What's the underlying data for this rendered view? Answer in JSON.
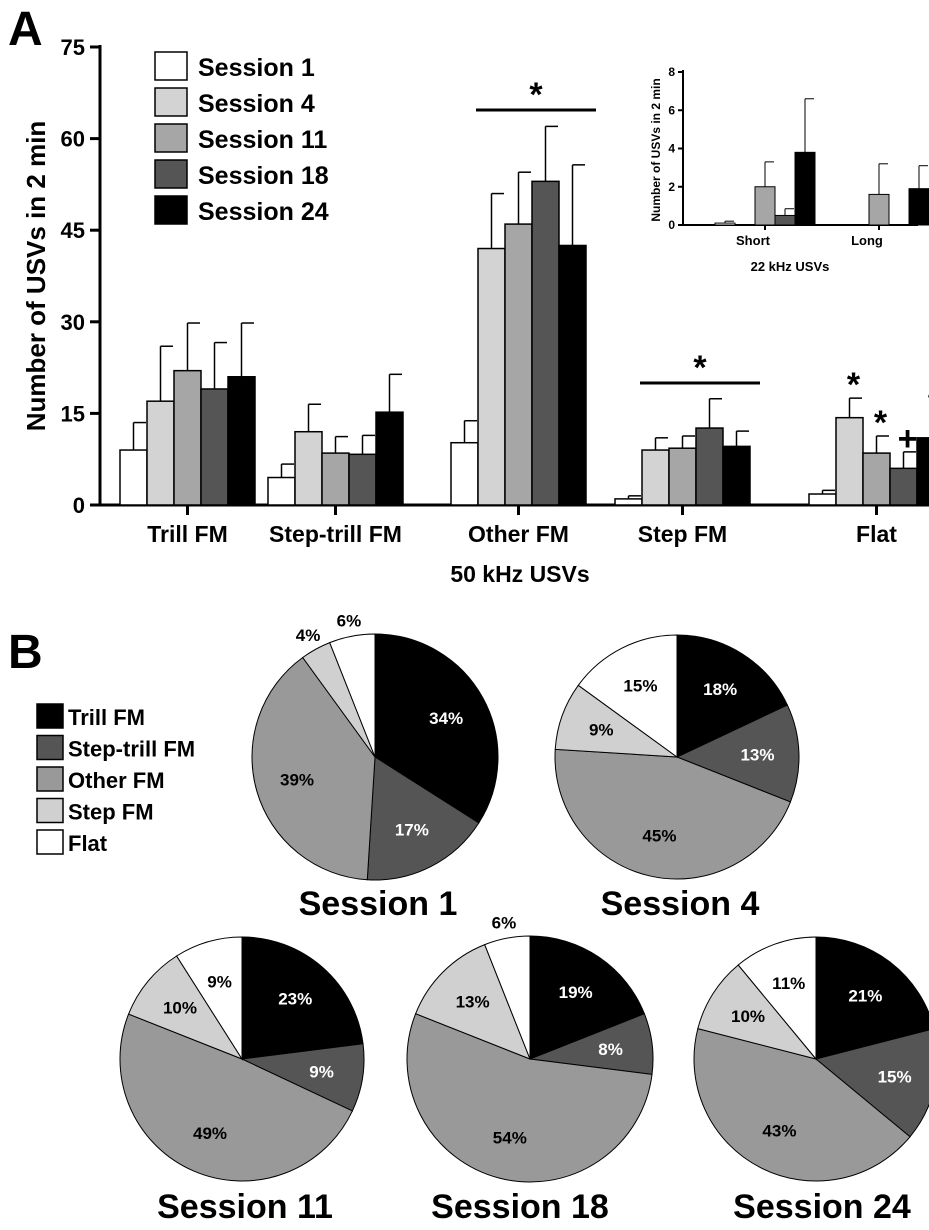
{
  "panel_a": {
    "label": "A"
  },
  "panel_b": {
    "label": "B"
  },
  "colors": {
    "Session 1": "#ffffff",
    "Session 4": "#d3d3d3",
    "Session 11": "#a6a6a6",
    "Session 18": "#555555",
    "Session 24": "#000000",
    "Trill FM": "#000000",
    "Step-trill FM": "#555555",
    "Other FM": "#999999",
    "Step FM": "#d0d0d0",
    "Flat": "#ffffff"
  },
  "chart_data": [
    {
      "type": "bar",
      "xlabel": "50 kHz USVs",
      "ylabel": "Number of USVs in 2 min",
      "ylim": [
        0,
        75
      ],
      "yticks": [
        0,
        15,
        30,
        45,
        60,
        75
      ],
      "legend_position": "top-left",
      "categories": [
        "Trill FM",
        "Step-trill FM",
        "Other FM",
        "Step FM",
        "Flat"
      ],
      "series": [
        {
          "name": "Session 1",
          "values": [
            9,
            4.5,
            10.2,
            1,
            1.8
          ],
          "errors": [
            4.5,
            2.2,
            3.6,
            0.5,
            0.6
          ]
        },
        {
          "name": "Session 4",
          "values": [
            17,
            12,
            42,
            9,
            14.3
          ],
          "errors": [
            9,
            4.5,
            9,
            2,
            3.2
          ]
        },
        {
          "name": "Session 11",
          "values": [
            22,
            8.5,
            46,
            9.3,
            8.5
          ],
          "errors": [
            7.8,
            2.7,
            8.5,
            2,
            2.8
          ]
        },
        {
          "name": "Session 18",
          "values": [
            19,
            8.3,
            53,
            12.6,
            6
          ],
          "errors": [
            7.6,
            3.1,
            9,
            4.8,
            2.7
          ]
        },
        {
          "name": "Session 24",
          "values": [
            21,
            15.2,
            42.5,
            9.6,
            11
          ],
          "errors": [
            8.8,
            6.2,
            13.2,
            2.5,
            3.5
          ]
        }
      ],
      "annotations": [
        {
          "text": "*",
          "category": "Other FM",
          "type": "bracket"
        },
        {
          "text": "*",
          "category": "Step FM",
          "type": "bracket"
        },
        {
          "text": "*",
          "category": "Flat",
          "series": "Session 4"
        },
        {
          "text": "*",
          "category": "Flat",
          "series": "Session 11"
        },
        {
          "text": "+",
          "category": "Flat",
          "series": "Session 18"
        },
        {
          "text": "*",
          "category": "Flat",
          "series": "Session 24"
        }
      ]
    },
    {
      "type": "bar",
      "xlabel": "22 kHz USVs",
      "ylabel": "Number of USVs in 2 min",
      "ylim": [
        0,
        8
      ],
      "yticks": [
        0,
        2,
        4,
        6,
        8
      ],
      "categories": [
        "Short",
        "Long"
      ],
      "series": [
        {
          "name": "Session 1",
          "values": [
            0.1,
            0
          ],
          "errors": [
            0.1,
            0
          ]
        },
        {
          "name": "Session 4",
          "values": [
            0,
            0
          ],
          "errors": [
            0,
            0
          ]
        },
        {
          "name": "Session 11",
          "values": [
            2,
            1.6
          ],
          "errors": [
            1.3,
            1.6
          ]
        },
        {
          "name": "Session 18",
          "values": [
            0.5,
            0
          ],
          "errors": [
            0.35,
            0
          ]
        },
        {
          "name": "Session 24",
          "values": [
            3.8,
            1.9
          ],
          "errors": [
            2.8,
            1.2
          ]
        }
      ]
    },
    {
      "type": "pie",
      "legend": [
        "Trill FM",
        "Step-trill FM",
        "Other FM",
        "Step FM",
        "Flat"
      ],
      "pies": [
        {
          "title": "Session 1",
          "labels": [
            "34%",
            "17%",
            "39%",
            "4%",
            "6%"
          ],
          "values": [
            34,
            17,
            39,
            4,
            6
          ]
        },
        {
          "title": "Session 4",
          "labels": [
            "18%",
            "13%",
            "45%",
            "9%",
            "15%"
          ],
          "values": [
            18,
            13,
            45,
            9,
            15
          ]
        },
        {
          "title": "Session 11",
          "labels": [
            "23%",
            "9%",
            "49%",
            "10%",
            "9%"
          ],
          "values": [
            23,
            9,
            49,
            10,
            9
          ]
        },
        {
          "title": "Session 18",
          "labels": [
            "19%",
            "8%",
            "54%",
            "13%",
            "6%"
          ],
          "values": [
            19,
            8,
            54,
            13,
            6
          ]
        },
        {
          "title": "Session 24",
          "labels": [
            "21%",
            "15%",
            "43%",
            "10%",
            "11%"
          ],
          "values": [
            21,
            15,
            43,
            10,
            11
          ]
        }
      ]
    }
  ]
}
